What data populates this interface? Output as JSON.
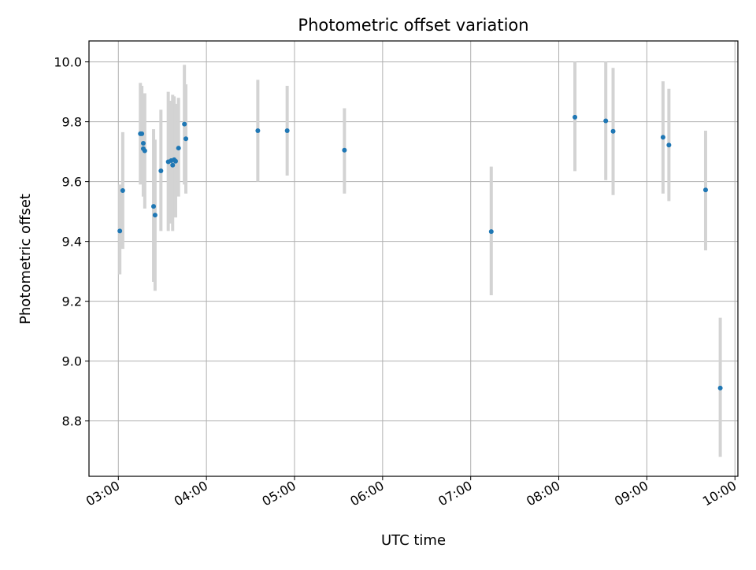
{
  "chart_data": {
    "type": "scatter",
    "title": "Photometric offset variation",
    "xlabel": "UTC time",
    "ylabel": "Photometric offset",
    "x_unit": "UTC time (HH:MM)",
    "xlim": [
      "02:40",
      "10:02"
    ],
    "ylim": [
      8.615,
      10.07
    ],
    "grid": true,
    "x_ticks": [
      "03:00",
      "04:00",
      "05:00",
      "06:00",
      "07:00",
      "08:00",
      "09:00",
      "10:00"
    ],
    "y_ticks": [
      "8.8",
      "9.0",
      "9.2",
      "9.4",
      "9.6",
      "9.8",
      "10.0"
    ],
    "marker_color": "#1f77b4",
    "errorbar_color": "#d3d3d3",
    "points": [
      {
        "x": "03:01",
        "y": 9.435,
        "lo": 9.29,
        "hi": 9.59
      },
      {
        "x": "03:03",
        "y": 9.57,
        "lo": 9.375,
        "hi": 9.765
      },
      {
        "x": "03:15",
        "y": 9.76,
        "lo": 9.59,
        "hi": 9.93
      },
      {
        "x": "03:16",
        "y": 9.76,
        "lo": 9.64,
        "hi": 9.92
      },
      {
        "x": "03:17",
        "y": 9.728,
        "lo": 9.55,
        "hi": 9.89
      },
      {
        "x": "03:17",
        "y": 9.71,
        "lo": 9.55,
        "hi": 9.88
      },
      {
        "x": "03:18",
        "y": 9.703,
        "lo": 9.51,
        "hi": 9.895
      },
      {
        "x": "03:24",
        "y": 9.517,
        "lo": 9.265,
        "hi": 9.775
      },
      {
        "x": "03:25",
        "y": 9.488,
        "lo": 9.235,
        "hi": 9.74
      },
      {
        "x": "03:29",
        "y": 9.636,
        "lo": 9.435,
        "hi": 9.84
      },
      {
        "x": "03:34",
        "y": 9.666,
        "lo": 9.435,
        "hi": 9.9
      },
      {
        "x": "03:36",
        "y": 9.67,
        "lo": 9.46,
        "hi": 9.87
      },
      {
        "x": "03:37",
        "y": 9.655,
        "lo": 9.435,
        "hi": 9.89
      },
      {
        "x": "03:38",
        "y": 9.673,
        "lo": 9.51,
        "hi": 9.885
      },
      {
        "x": "03:39",
        "y": 9.668,
        "lo": 9.48,
        "hi": 9.86
      },
      {
        "x": "03:41",
        "y": 9.712,
        "lo": 9.55,
        "hi": 9.88
      },
      {
        "x": "03:45",
        "y": 9.792,
        "lo": 9.59,
        "hi": 9.99
      },
      {
        "x": "03:46",
        "y": 9.743,
        "lo": 9.56,
        "hi": 9.925
      },
      {
        "x": "04:35",
        "y": 9.77,
        "lo": 9.6,
        "hi": 9.94
      },
      {
        "x": "04:55",
        "y": 9.77,
        "lo": 9.62,
        "hi": 9.92
      },
      {
        "x": "05:34",
        "y": 9.705,
        "lo": 9.56,
        "hi": 9.845
      },
      {
        "x": "07:14",
        "y": 9.433,
        "lo": 9.22,
        "hi": 9.65
      },
      {
        "x": "08:11",
        "y": 9.815,
        "lo": 9.635,
        "hi": 10.0
      },
      {
        "x": "08:32",
        "y": 9.803,
        "lo": 9.605,
        "hi": 10.0
      },
      {
        "x": "08:37",
        "y": 9.768,
        "lo": 9.555,
        "hi": 9.98
      },
      {
        "x": "09:11",
        "y": 9.748,
        "lo": 9.56,
        "hi": 9.935
      },
      {
        "x": "09:15",
        "y": 9.722,
        "lo": 9.535,
        "hi": 9.91
      },
      {
        "x": "09:40",
        "y": 9.572,
        "lo": 9.37,
        "hi": 9.77
      },
      {
        "x": "09:50",
        "y": 8.91,
        "lo": 8.68,
        "hi": 9.145
      }
    ]
  }
}
